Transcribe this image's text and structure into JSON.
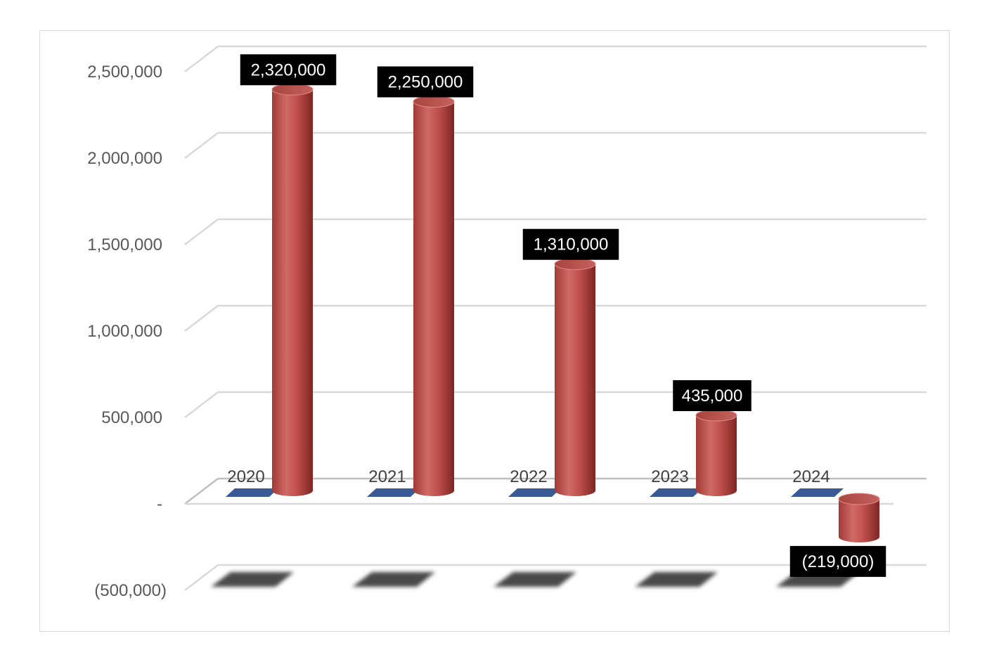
{
  "chart_data": {
    "type": "bar",
    "style": "3d-cylinder",
    "categories": [
      "2020",
      "2021",
      "2022",
      "2023",
      "2024"
    ],
    "series": [
      {
        "values": [
          2320000,
          2250000,
          1310000,
          435000,
          -219000
        ],
        "color": "#c0504d",
        "data_labels": [
          "2,320,000",
          "2,250,000",
          "1,310,000",
          "435,000",
          "(219,000)"
        ]
      }
    ],
    "secondary_series_color": "#3a5a96",
    "y_ticks": [
      {
        "value": 2500000,
        "label": "2,500,000"
      },
      {
        "value": 2000000,
        "label": "2,000,000"
      },
      {
        "value": 1500000,
        "label": "1,500,000"
      },
      {
        "value": 1000000,
        "label": "1,000,000"
      },
      {
        "value": 500000,
        "label": "500,000"
      },
      {
        "value": 0,
        "label": "-"
      },
      {
        "value": -500000,
        "label": "(500,000)"
      }
    ],
    "ylim": [
      -500000,
      2500000
    ],
    "grid": true,
    "legend": "none",
    "title": "",
    "xlabel": "",
    "ylabel": "",
    "data_label_background": "#000000",
    "data_label_color": "#ffffff"
  }
}
